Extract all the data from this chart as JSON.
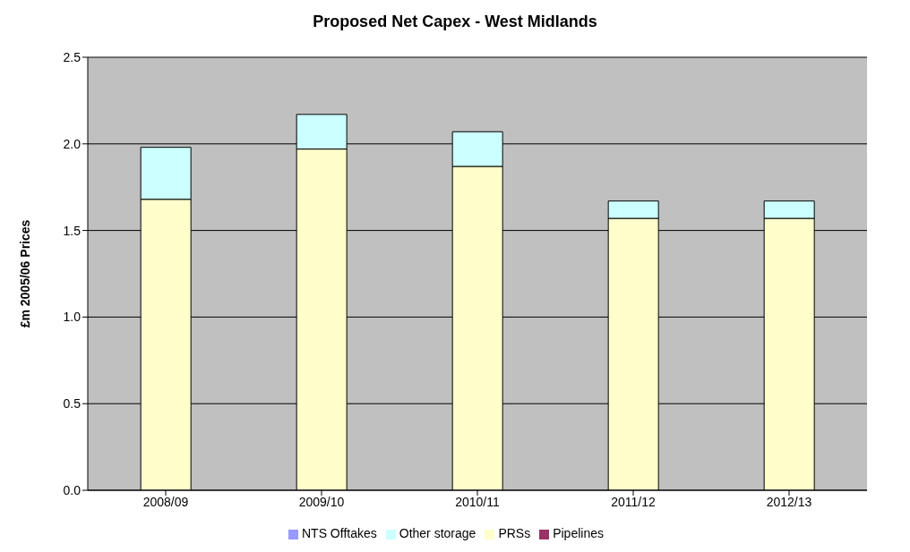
{
  "chart_data": {
    "type": "bar",
    "title": "Proposed Net Capex - West Midlands",
    "ylabel": "£m 2005/06 Prices",
    "categories": [
      "2008/09",
      "2009/10",
      "2010/11",
      "2011/12",
      "2012/13"
    ],
    "stacked": true,
    "series": [
      {
        "name": "NTS Offtakes",
        "color": "#9999ff",
        "values": [
          0,
          0,
          0,
          0,
          0
        ]
      },
      {
        "name": "Pipelines",
        "color": "#993366",
        "values": [
          0,
          0,
          0,
          0,
          0
        ]
      },
      {
        "name": "PRSs",
        "color": "#ffffcc",
        "values": [
          1.68,
          1.97,
          1.87,
          1.57,
          1.57
        ]
      },
      {
        "name": "Other storage",
        "color": "#ccffff",
        "values": [
          0.3,
          0.2,
          0.2,
          0.1,
          0.1
        ]
      }
    ],
    "ylim": [
      0,
      2.5
    ],
    "yticks": [
      {
        "value": 0,
        "label": "0.0"
      },
      {
        "value": 0.5,
        "label": "0.5"
      },
      {
        "value": 1,
        "label": "1.0"
      },
      {
        "value": 1.5,
        "label": "1.5"
      },
      {
        "value": 2,
        "label": "2.0"
      },
      {
        "value": 2.5,
        "label": "2.5"
      }
    ],
    "grid": "y",
    "legend": "bottom"
  }
}
